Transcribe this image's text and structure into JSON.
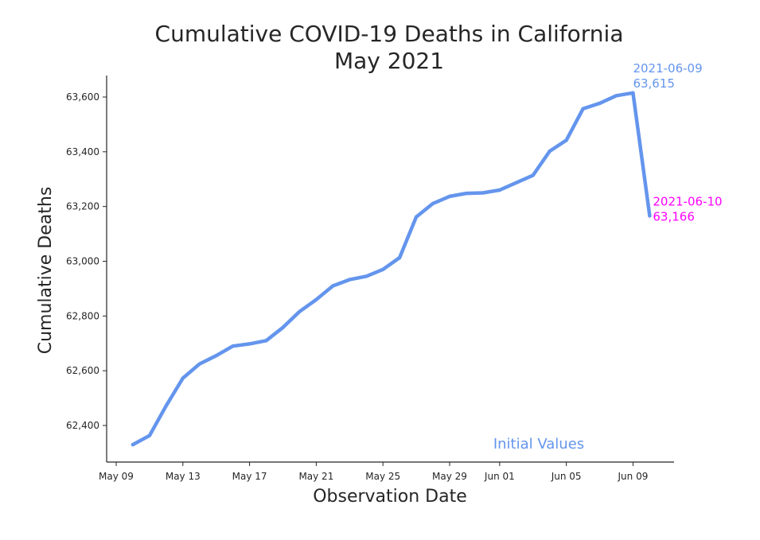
{
  "chart_data": {
    "type": "line",
    "title": "Cumulative COVID-19 Deaths in California",
    "subtitle": "May 2021",
    "xlabel": "Observation Date",
    "ylabel": "Cumulative Deaths",
    "x_ticks": [
      "May 09",
      "May 13",
      "May 17",
      "May 21",
      "May 25",
      "May 29",
      "Jun 01",
      "Jun 05",
      "Jun 09"
    ],
    "y_ticks": [
      "62,400",
      "62,600",
      "62,800",
      "63,000",
      "63,200",
      "63,400",
      "63,600"
    ],
    "ylim": [
      62300,
      63680
    ],
    "xlim": [
      "2021-05-09",
      "2021-06-12"
    ],
    "grid": false,
    "series": [
      {
        "name": "Initial Values",
        "color": "#6495ED",
        "x": [
          "2021-05-10",
          "2021-05-11",
          "2021-05-12",
          "2021-05-13",
          "2021-05-14",
          "2021-05-15",
          "2021-05-16",
          "2021-05-17",
          "2021-05-18",
          "2021-05-19",
          "2021-05-20",
          "2021-05-21",
          "2021-05-22",
          "2021-05-23",
          "2021-05-24",
          "2021-05-25",
          "2021-05-26",
          "2021-05-27",
          "2021-05-28",
          "2021-05-29",
          "2021-05-30",
          "2021-05-31",
          "2021-06-01",
          "2021-06-02",
          "2021-06-03",
          "2021-06-04",
          "2021-06-05",
          "2021-06-06",
          "2021-06-07",
          "2021-06-08",
          "2021-06-09",
          "2021-06-10"
        ],
        "values": [
          62330,
          62363,
          62472,
          62573,
          62625,
          62655,
          62690,
          62698,
          62710,
          62758,
          62816,
          62860,
          62910,
          62933,
          62945,
          62970,
          63013,
          63162,
          63211,
          63237,
          63248,
          63250,
          63260,
          63287,
          63314,
          63402,
          63442,
          63557,
          63577,
          63605,
          63615,
          63166
        ]
      }
    ],
    "annotations": [
      {
        "date": "2021-06-09",
        "value": "63,615",
        "color": "#6495ED"
      },
      {
        "date": "2021-06-10",
        "value": "63,166",
        "color": "#FF00FF"
      }
    ],
    "legend_label": "Initial Values",
    "legend_position": "bottom-right"
  }
}
